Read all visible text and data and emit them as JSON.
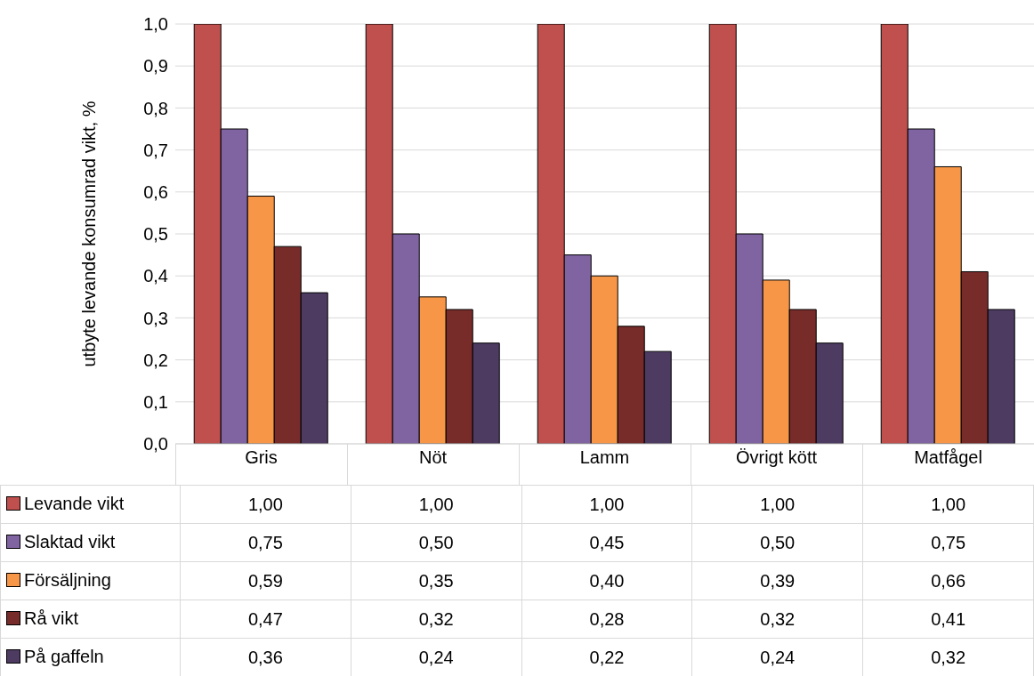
{
  "chart_data": {
    "type": "bar",
    "ylabel": "utbyte levande konsumrad vikt, %",
    "categories": [
      "Gris",
      "Nöt",
      "Lamm",
      "Övrigt kött",
      "Matfågel"
    ],
    "ylim": [
      0,
      1
    ],
    "yticks": [
      {
        "value": 0,
        "label": "0,0"
      },
      {
        "value": 0.1,
        "label": "0,1"
      },
      {
        "value": 0.2,
        "label": "0,2"
      },
      {
        "value": 0.3,
        "label": "0,3"
      },
      {
        "value": 0.4,
        "label": "0,4"
      },
      {
        "value": 0.5,
        "label": "0,5"
      },
      {
        "value": 0.6,
        "label": "0,6"
      },
      {
        "value": 0.7,
        "label": "0,7"
      },
      {
        "value": 0.8,
        "label": "0,8"
      },
      {
        "value": 0.9,
        "label": "0,9"
      },
      {
        "value": 1,
        "label": "1,0"
      }
    ],
    "grid": "y",
    "legend": "bottom",
    "series": [
      {
        "name": "Levande vikt",
        "color": "#c0504d",
        "values": [
          1,
          1,
          1,
          1,
          1
        ],
        "value_labels": [
          "1,00",
          "1,00",
          "1,00",
          "1,00",
          "1,00"
        ]
      },
      {
        "name": "Slaktad vikt",
        "color": "#8064a2",
        "values": [
          0.75,
          0.5,
          0.45,
          0.5,
          0.75
        ],
        "value_labels": [
          "0,75",
          "0,50",
          "0,45",
          "0,50",
          "0,75"
        ]
      },
      {
        "name": "Försäljning",
        "color": "#f79646",
        "values": [
          0.59,
          0.35,
          0.4,
          0.39,
          0.66
        ],
        "value_labels": [
          "0,59",
          "0,35",
          "0,40",
          "0,39",
          "0,66"
        ]
      },
      {
        "name": "Rå vikt",
        "color": "#772c2a",
        "values": [
          0.47,
          0.32,
          0.28,
          0.32,
          0.41
        ],
        "value_labels": [
          "0,47",
          "0,32",
          "0,28",
          "0,32",
          "0,41"
        ]
      },
      {
        "name": "På gaffeln",
        "color": "#4d3b62",
        "values": [
          0.36,
          0.24,
          0.22,
          0.24,
          0.32
        ],
        "value_labels": [
          "0,36",
          "0,24",
          "0,22",
          "0,24",
          "0,32"
        ]
      }
    ]
  }
}
